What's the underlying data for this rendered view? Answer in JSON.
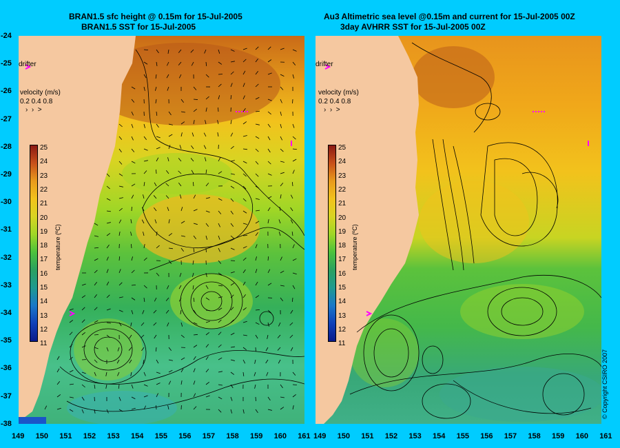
{
  "left_panel": {
    "title_line1": "BRAN1.5 sfc height @ 0.15m for 15-Jul-2005",
    "title_line2": "BRAN1.5 SST for 15-Jul-2005",
    "drifter_label": "drifter",
    "velocity_label": "velocity (m/s)",
    "velocity_scale": "0.2 0.4 0.8"
  },
  "right_panel": {
    "title_line1": "Au3 Altimetric sea level  @0.15m and current for 15-Jul-2005 00Z",
    "title_line2": "3day AVHRR SST for 15-Jul-2005 00Z",
    "drifter_label": "drifter",
    "velocity_label": "velocity (m/s)",
    "velocity_scale": "0.2 0.4 0.8"
  },
  "colorbar": {
    "title": "temperature (ºC)",
    "labels": [
      "25",
      "24",
      "23",
      "22",
      "21",
      "20",
      "19",
      "18",
      "17",
      "16",
      "15",
      "14",
      "13",
      "12",
      "11"
    ]
  },
  "axes": {
    "lat_labels": [
      "-24",
      "-25",
      "-26",
      "-27",
      "-28",
      "-29",
      "-30",
      "-31",
      "-32",
      "-33",
      "-34",
      "-35",
      "-36",
      "-37",
      "-38"
    ],
    "left_lon_labels": [
      "149",
      "150",
      "151",
      "152",
      "153",
      "154",
      "155",
      "156",
      "157",
      "158",
      "159",
      "160",
      "161"
    ],
    "right_lon_labels": [
      "149",
      "150",
      "151",
      "152",
      "153",
      "154",
      "155",
      "156",
      "157",
      "158",
      "159",
      "160",
      "161"
    ]
  },
  "copyright": "© Copyright CSIRO 2007",
  "colors": {
    "background": "#00ccff",
    "land": "#f5c8a0",
    "drifter": "#ff00ff"
  }
}
